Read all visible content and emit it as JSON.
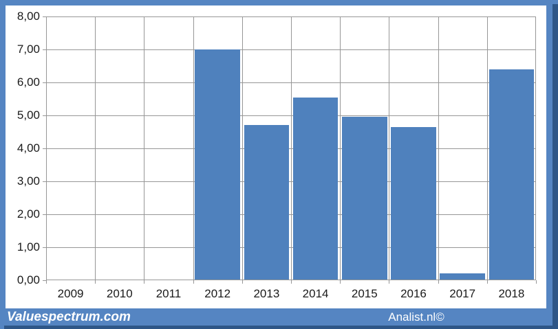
{
  "chart_data": {
    "type": "bar",
    "title": "",
    "xlabel": "",
    "ylabel": "",
    "categories": [
      "2009",
      "2010",
      "2011",
      "2012",
      "2013",
      "2014",
      "2015",
      "2016",
      "2017",
      "2018"
    ],
    "values": [
      0,
      0,
      0,
      7.0,
      4.7,
      5.55,
      4.95,
      4.65,
      0.2,
      6.4
    ],
    "ylim": [
      0,
      8
    ],
    "ytick_labels": [
      "0,00",
      "1,00",
      "2,00",
      "3,00",
      "4,00",
      "5,00",
      "6,00",
      "7,00",
      "8,00"
    ],
    "grid": "both",
    "legend": "none",
    "decimal_separator": "comma"
  },
  "footer": {
    "left_watermark": "Valuespectrum.com",
    "right_watermark": "Analist.nl©"
  },
  "colors": {
    "bar": "#4f81bd",
    "frame": "#5585c2",
    "frame_shadow": "#2e5687",
    "gridline": "#969696",
    "plot_border": "#969696",
    "axis_text": "#1a1a1a",
    "watermark_text": "#ffffff",
    "plot_background": "#ffffff"
  }
}
